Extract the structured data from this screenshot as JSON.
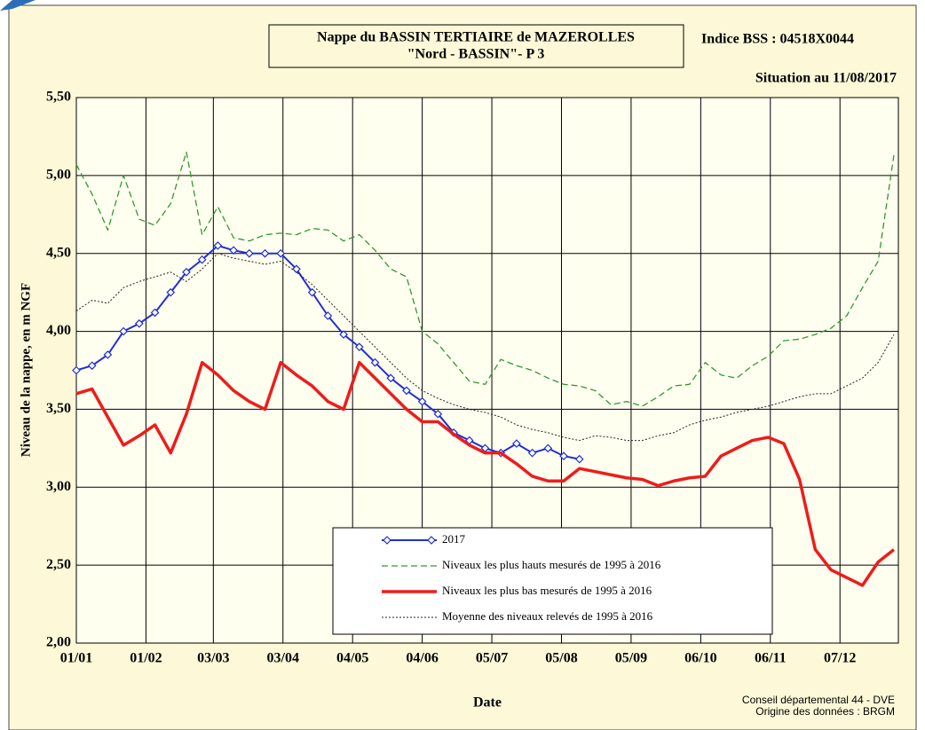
{
  "chart_data": {
    "type": "line",
    "title": [
      "Nappe du BASSIN TERTIAIRE de MAZEROLLES",
      "\"Nord - BASSIN\"- P 3"
    ],
    "station": "Indice BSS : 04518X0044",
    "situation": "Situation au 11/08/2017",
    "x_label": "Date",
    "y_label": "Niveau de la nappe, en m NGF",
    "credits": [
      "Conseil départemental 44 - DVE",
      "Origine des données : BRGM"
    ],
    "grid": true,
    "x": [
      0,
      7,
      14,
      21,
      28,
      35,
      42,
      49,
      56,
      63,
      70,
      77,
      84,
      91,
      98,
      105,
      112,
      119,
      126,
      133,
      140,
      147,
      154,
      161,
      168,
      175,
      182,
      189,
      196,
      203,
      210,
      217,
      224,
      231,
      238,
      245,
      252,
      259,
      266,
      273,
      280,
      287,
      294,
      301,
      308,
      315,
      322,
      329,
      336,
      343,
      350,
      357,
      364
    ],
    "xlim": [
      0,
      366
    ],
    "xticks": [
      {
        "value": 0,
        "label": "01/01"
      },
      {
        "value": 31,
        "label": "01/02"
      },
      {
        "value": 61,
        "label": "03/03"
      },
      {
        "value": 92,
        "label": "03/04"
      },
      {
        "value": 123,
        "label": "04/05"
      },
      {
        "value": 154,
        "label": "04/06"
      },
      {
        "value": 185,
        "label": "05/07"
      },
      {
        "value": 216,
        "label": "05/08"
      },
      {
        "value": 247,
        "label": "05/09"
      },
      {
        "value": 278,
        "label": "06/10"
      },
      {
        "value": 309,
        "label": "06/11"
      },
      {
        "value": 340,
        "label": "07/12"
      }
    ],
    "ylim": [
      2,
      5.5
    ],
    "yticks": [
      {
        "value": 2,
        "label": "2,00"
      },
      {
        "value": 2.5,
        "label": "2,50"
      },
      {
        "value": 3,
        "label": "3,00"
      },
      {
        "value": 3.5,
        "label": "3,50"
      },
      {
        "value": 4,
        "label": "4,00"
      },
      {
        "value": 4.5,
        "label": "4,50"
      },
      {
        "value": 5,
        "label": "5,00"
      },
      {
        "value": 5.5,
        "label": "5,50"
      }
    ],
    "series": [
      {
        "name": "2017",
        "color": "#1f2fd6",
        "style": "solid",
        "marker": "diamond",
        "values": [
          3.75,
          3.78,
          3.85,
          4.0,
          4.05,
          4.12,
          4.25,
          4.38,
          4.46,
          4.55,
          4.52,
          4.5,
          4.5,
          4.5,
          4.4,
          4.25,
          4.1,
          3.98,
          3.9,
          3.8,
          3.7,
          3.62,
          3.55,
          3.47,
          3.35,
          3.3,
          3.25,
          3.22,
          3.28,
          3.22,
          3.25,
          3.2,
          3.18,
          null,
          null,
          null,
          null,
          null,
          null,
          null,
          null,
          null,
          null,
          null,
          null,
          null,
          null,
          null,
          null,
          null,
          null,
          null,
          null
        ]
      },
      {
        "name": "Niveaux les plus hauts mesurés de 1995 à 2016",
        "color": "#2e9a2e",
        "style": "dashed",
        "values": [
          5.07,
          4.88,
          4.65,
          5.0,
          4.72,
          4.68,
          4.82,
          5.15,
          4.62,
          4.8,
          4.6,
          4.58,
          4.62,
          4.63,
          4.62,
          4.66,
          4.65,
          4.58,
          4.62,
          4.52,
          4.4,
          4.35,
          4.0,
          3.92,
          3.8,
          3.68,
          3.66,
          3.82,
          3.78,
          3.75,
          3.7,
          3.66,
          3.65,
          3.62,
          3.53,
          3.55,
          3.52,
          3.58,
          3.65,
          3.66,
          3.8,
          3.72,
          3.7,
          3.78,
          3.84,
          3.94,
          3.95,
          3.98,
          4.02,
          4.1,
          4.28,
          4.45,
          5.13
        ]
      },
      {
        "name": "Niveaux les plus bas mesurés de 1995 à 2016",
        "color": "#ee1c1c",
        "style": "thick",
        "values": [
          3.6,
          3.63,
          3.45,
          3.27,
          3.33,
          3.4,
          3.22,
          3.47,
          3.8,
          3.72,
          3.62,
          3.55,
          3.5,
          3.8,
          3.72,
          3.65,
          3.55,
          3.5,
          3.8,
          3.7,
          3.6,
          3.5,
          3.42,
          3.42,
          3.34,
          3.27,
          3.22,
          3.22,
          3.15,
          3.07,
          3.04,
          3.04,
          3.12,
          3.1,
          3.08,
          3.06,
          3.05,
          3.01,
          3.04,
          3.06,
          3.07,
          3.2,
          3.25,
          3.3,
          3.32,
          3.28,
          3.05,
          2.6,
          2.47,
          2.42,
          2.37,
          2.52,
          2.6
        ]
      },
      {
        "name": "Moyenne des niveaux relevés de 1995 à 2016",
        "color": "#222222",
        "style": "dotted",
        "values": [
          4.13,
          4.2,
          4.18,
          4.28,
          4.32,
          4.35,
          4.38,
          4.32,
          4.4,
          4.5,
          4.47,
          4.45,
          4.43,
          4.45,
          4.38,
          4.3,
          4.2,
          4.1,
          4.0,
          3.9,
          3.8,
          3.7,
          3.62,
          3.57,
          3.53,
          3.5,
          3.48,
          3.45,
          3.4,
          3.37,
          3.35,
          3.32,
          3.3,
          3.33,
          3.32,
          3.3,
          3.3,
          3.33,
          3.35,
          3.4,
          3.43,
          3.45,
          3.48,
          3.5,
          3.52,
          3.55,
          3.58,
          3.6,
          3.6,
          3.65,
          3.7,
          3.8,
          3.98
        ]
      }
    ]
  }
}
